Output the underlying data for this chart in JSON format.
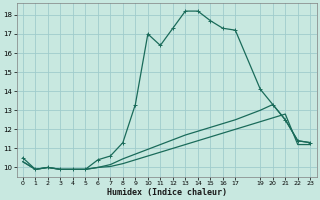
{
  "xlabel": "Humidex (Indice chaleur)",
  "background_color": "#c8e8e0",
  "grid_color": "#a0cccc",
  "line_color": "#1a6b5a",
  "xlim": [
    -0.5,
    23.5
  ],
  "ylim": [
    9.5,
    18.6
  ],
  "xticks": [
    0,
    1,
    2,
    3,
    4,
    5,
    6,
    7,
    8,
    9,
    10,
    11,
    12,
    13,
    14,
    15,
    16,
    17,
    19,
    20,
    21,
    22,
    23
  ],
  "yticks": [
    10,
    11,
    12,
    13,
    14,
    15,
    16,
    17,
    18
  ],
  "series1_x": [
    0,
    1,
    2,
    3,
    4,
    5,
    6,
    7,
    8,
    9,
    10,
    11,
    12,
    13,
    14,
    15,
    16,
    17,
    19,
    20,
    21,
    22,
    23
  ],
  "series1_y": [
    10.5,
    9.9,
    10.0,
    9.9,
    9.9,
    9.9,
    10.4,
    10.6,
    11.3,
    13.3,
    17.0,
    16.4,
    17.3,
    18.2,
    18.2,
    17.7,
    17.3,
    17.2,
    14.1,
    13.3,
    12.5,
    11.4,
    11.3
  ],
  "series2_x": [
    0,
    1,
    2,
    3,
    4,
    5,
    6,
    7,
    8,
    9,
    10,
    11,
    12,
    13,
    14,
    15,
    16,
    17,
    19,
    20,
    21,
    22,
    23
  ],
  "series2_y": [
    10.3,
    9.9,
    10.0,
    9.9,
    9.9,
    9.9,
    10.0,
    10.15,
    10.45,
    10.7,
    10.95,
    11.2,
    11.45,
    11.7,
    11.9,
    12.1,
    12.3,
    12.5,
    13.0,
    13.3,
    12.5,
    11.4,
    11.3
  ],
  "series3_x": [
    0,
    1,
    2,
    3,
    4,
    5,
    6,
    7,
    8,
    9,
    10,
    11,
    12,
    13,
    14,
    15,
    16,
    17,
    19,
    20,
    21,
    22,
    23
  ],
  "series3_y": [
    10.3,
    9.9,
    10.0,
    9.9,
    9.9,
    9.9,
    10.0,
    10.05,
    10.2,
    10.4,
    10.6,
    10.8,
    11.0,
    11.2,
    11.4,
    11.6,
    11.8,
    12.0,
    12.4,
    12.6,
    12.8,
    11.2,
    11.2
  ],
  "marker": "+",
  "markersize": 3,
  "linewidth": 0.9
}
